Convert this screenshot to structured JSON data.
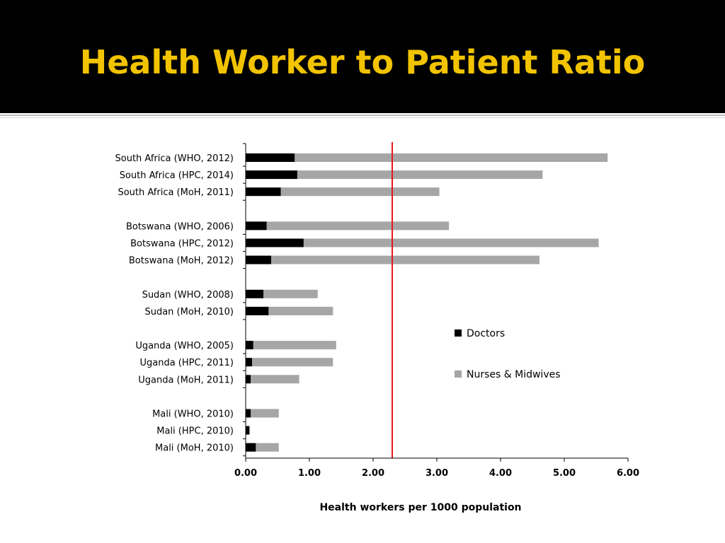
{
  "slide": {
    "title": "Health Worker to Patient Ratio",
    "title_color": "#f2c300"
  },
  "colors": {
    "doctors": "#000000",
    "nurses": "#a6a6a6",
    "reference_line": "#e31a1c"
  },
  "chart_data": {
    "type": "bar",
    "orientation": "horizontal",
    "stacked": true,
    "title": "",
    "xlabel": "Health workers per 1000 population",
    "ylabel": "",
    "xlim": [
      0,
      6
    ],
    "x_ticks": [
      "0.00",
      "1.00",
      "2.00",
      "3.00",
      "4.00",
      "5.00",
      "6.00"
    ],
    "categories": [
      "South Africa (WHO, 2012)",
      "South Africa (HPC, 2014)",
      "South Africa (MoH, 2011)",
      "Botswana (WHO, 2006)",
      "Botswana (HPC, 2012)",
      "Botswana (MoH, 2012)",
      "Sudan (WHO, 2008)",
      "Sudan (MoH, 2010)",
      "Uganda (WHO, 2005)",
      "Uganda (HPC, 2011)",
      "Uganda (MoH, 2011)",
      "Mali (WHO, 2010)",
      "Mali (HPC, 2010)",
      "Mali (MoH, 2010)"
    ],
    "groups": [
      3,
      3,
      2,
      3,
      3
    ],
    "series": [
      {
        "name": "Doctors",
        "values": [
          0.77,
          0.81,
          0.55,
          0.33,
          0.91,
          0.4,
          0.28,
          0.36,
          0.12,
          0.1,
          0.08,
          0.08,
          0.06,
          0.16
        ]
      },
      {
        "name": "Nurses & Midwives",
        "values": [
          4.91,
          3.85,
          2.49,
          2.86,
          4.63,
          4.21,
          0.85,
          1.01,
          1.3,
          1.27,
          0.76,
          0.44,
          0.0,
          0.36
        ]
      }
    ],
    "reference_line_x": 2.3,
    "legend_position": "right",
    "grid": false
  }
}
